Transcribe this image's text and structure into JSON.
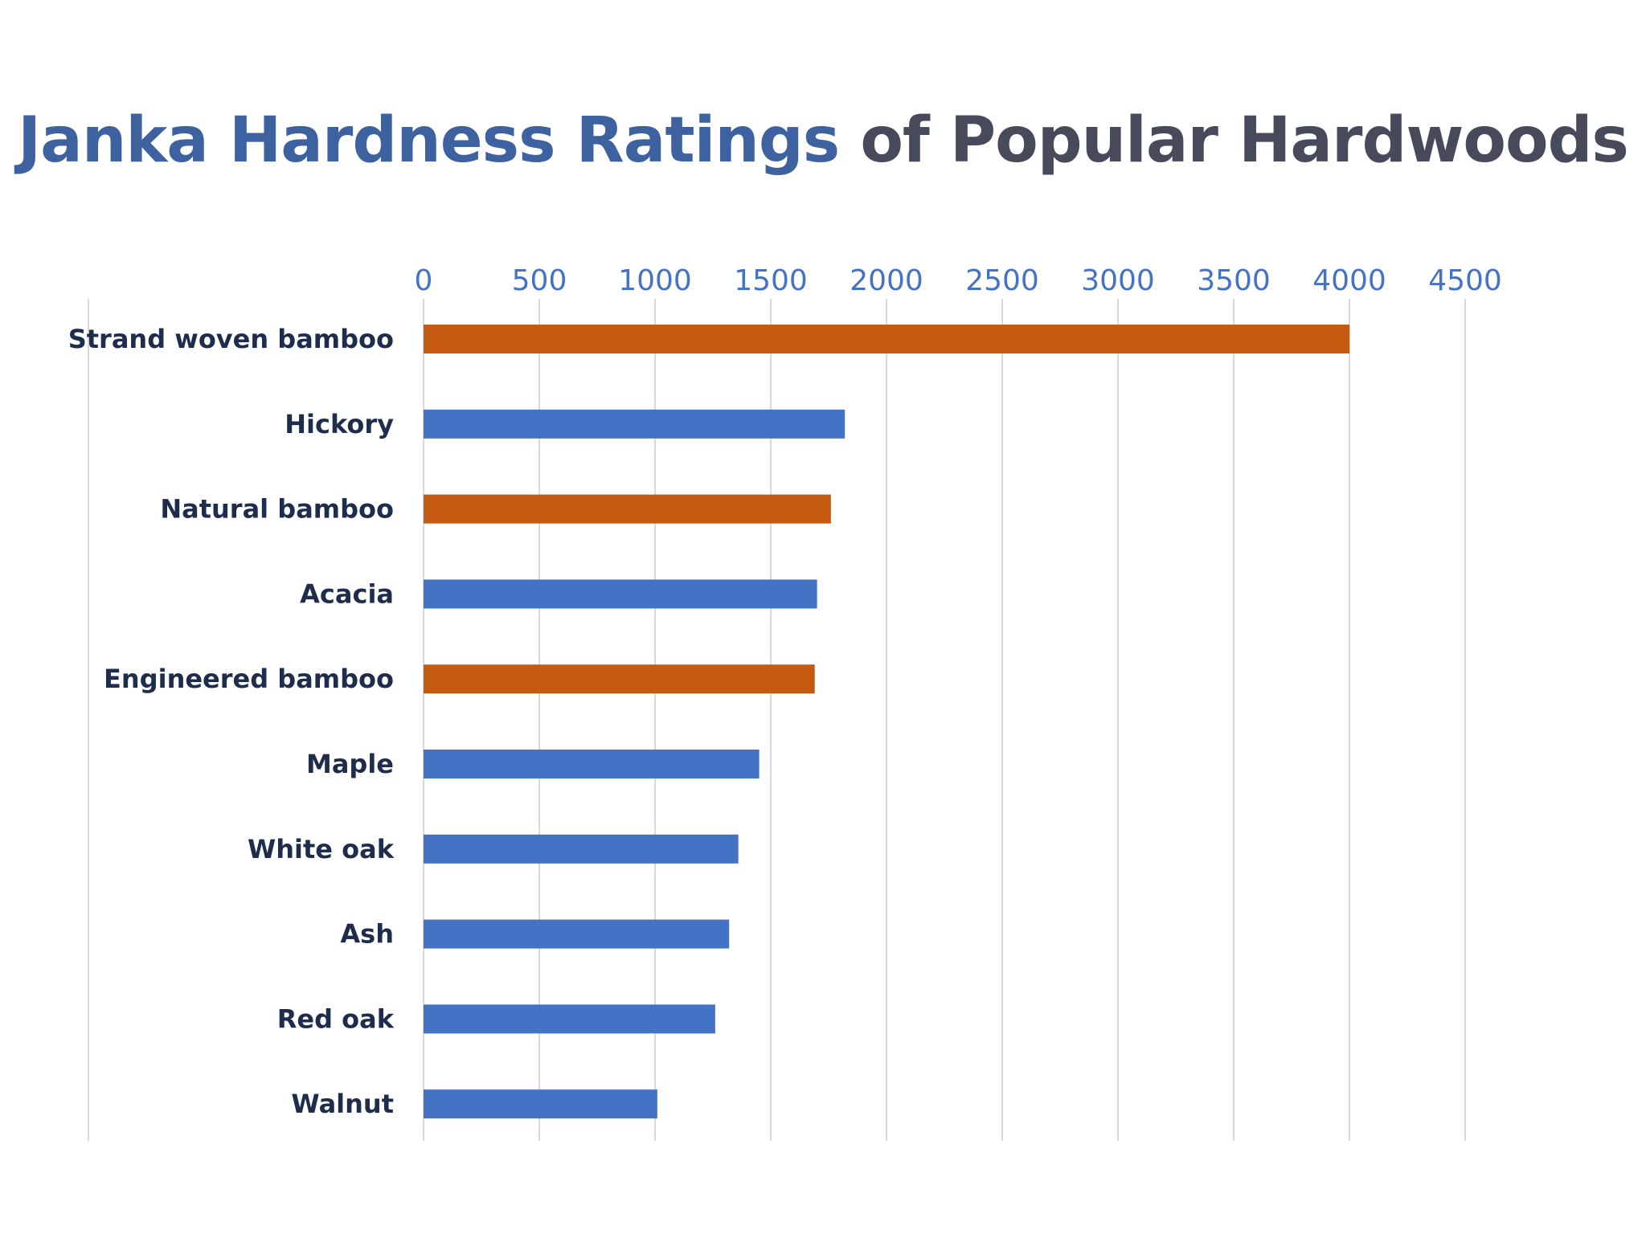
{
  "title": {
    "highlight": "Janka Hardness Ratings",
    "rest": "of Popular Hardwoods"
  },
  "colors": {
    "title_highlight": "#3E62A0",
    "title_rest": "#474A5A",
    "bamboo_bar": "#C55A11",
    "hardwood_bar": "#4472C4",
    "tick_label": "#4472C4",
    "category_label": "#1F2D4D",
    "gridline": "#D9D9D9"
  },
  "chart_data": {
    "type": "bar",
    "orientation": "horizontal",
    "title": "Janka Hardness Ratings of Popular Hardwoods",
    "xlabel": "",
    "ylabel": "",
    "xlim": [
      0,
      4500
    ],
    "xticks": [
      0,
      500,
      1000,
      1500,
      2000,
      2500,
      3000,
      3500,
      4000,
      4500
    ],
    "x_axis_position": "top",
    "grid": "vertical",
    "legend": "none",
    "categories": [
      "Strand woven bamboo",
      "Hickory",
      "Natural bamboo",
      "Acacia",
      "Engineered bamboo",
      "Maple",
      "White oak",
      "Ash",
      "Red oak",
      "Walnut"
    ],
    "values": [
      4000,
      1820,
      1760,
      1700,
      1690,
      1450,
      1360,
      1320,
      1260,
      1010
    ],
    "bar_colors": [
      "bamboo",
      "hardwood",
      "bamboo",
      "hardwood",
      "bamboo",
      "hardwood",
      "hardwood",
      "hardwood",
      "hardwood",
      "hardwood"
    ]
  }
}
